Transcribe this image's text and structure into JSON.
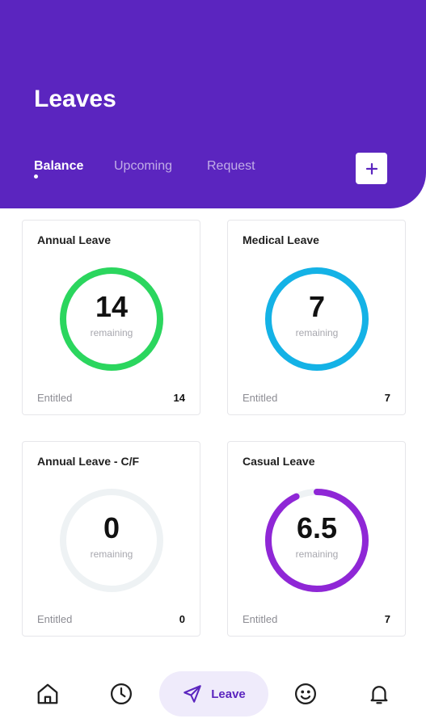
{
  "header": {
    "title": "Leaves",
    "tabs": [
      {
        "label": "Balance",
        "active": true
      },
      {
        "label": "Upcoming",
        "active": false
      },
      {
        "label": "Request",
        "active": false
      }
    ],
    "add_icon": "plus-icon",
    "background_color": "#5b25bf"
  },
  "cards": [
    {
      "title": "Annual Leave",
      "remaining": "14",
      "remaining_label": "remaining",
      "entitled_label": "Entitled",
      "entitled": "14",
      "ring_color": "#2bd65e",
      "ring_fraction": 1.0
    },
    {
      "title": "Medical Leave",
      "remaining": "7",
      "remaining_label": "remaining",
      "entitled_label": "Entitled",
      "entitled": "7",
      "ring_color": "#14b2e6",
      "ring_fraction": 1.0
    },
    {
      "title": "Annual Leave - C/F",
      "remaining": "0",
      "remaining_label": "remaining",
      "entitled_label": "Entitled",
      "entitled": "0",
      "ring_color": "#eef2f4",
      "ring_fraction": 0.0
    },
    {
      "title": "Casual Leave",
      "remaining": "6.5",
      "remaining_label": "remaining",
      "entitled_label": "Entitled",
      "entitled": "7",
      "ring_color": "#8f27d6",
      "ring_fraction": 0.93
    }
  ],
  "ring_track_color": "#eef2f4",
  "bottom_nav": {
    "items": [
      {
        "icon": "home-icon"
      },
      {
        "icon": "clock-icon"
      },
      {
        "icon": "send-icon",
        "label": "Leave",
        "active": true
      },
      {
        "icon": "smiley-icon"
      },
      {
        "icon": "bell-icon"
      }
    ],
    "active_color": "#5b25bf"
  }
}
